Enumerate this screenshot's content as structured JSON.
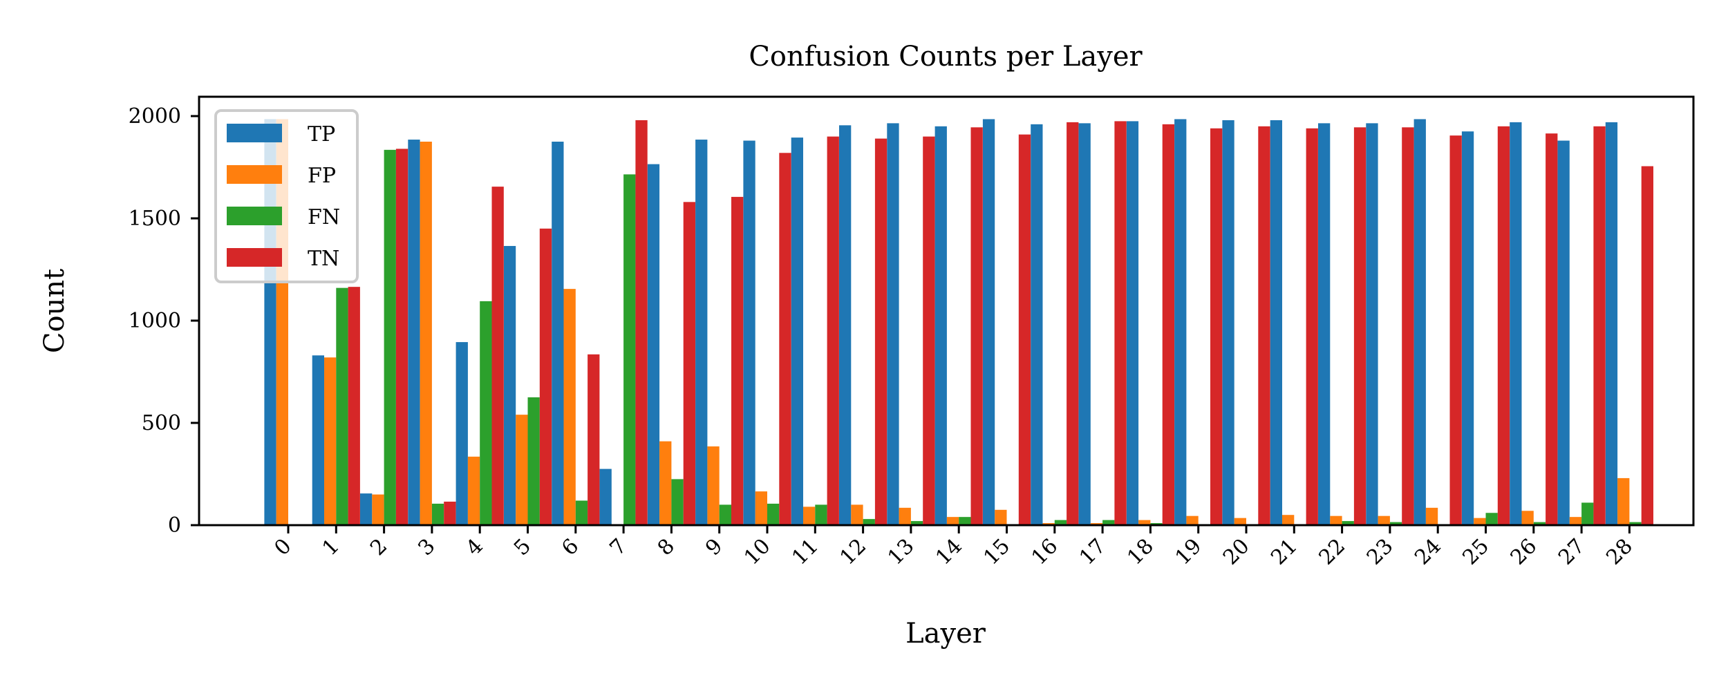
{
  "chart_data": {
    "type": "bar",
    "title": "Confusion Counts per Layer",
    "xlabel": "Layer",
    "ylabel": "Count",
    "ylim": [
      0,
      2100
    ],
    "yticks": [
      0,
      500,
      1000,
      1500,
      2000
    ],
    "legend_position": "top-left",
    "grid": false,
    "categories": [
      "0",
      "1",
      "2",
      "3",
      "4",
      "5",
      "6",
      "7",
      "8",
      "9",
      "10",
      "11",
      "12",
      "13",
      "14",
      "15",
      "16",
      "17",
      "18",
      "19",
      "20",
      "21",
      "22",
      "23",
      "24",
      "25",
      "26",
      "27",
      "28"
    ],
    "series": [
      {
        "name": "TP",
        "color": "#1f77b4",
        "values": [
          1985,
          830,
          155,
          1885,
          895,
          1365,
          1875,
          275,
          1765,
          1885,
          1880,
          1895,
          1955,
          1965,
          1950,
          1985,
          1960,
          1965,
          1975,
          1985,
          1980,
          1980,
          1965,
          1965,
          1985,
          1925,
          1970,
          1880,
          1970
        ]
      },
      {
        "name": "FP",
        "color": "#ff7f0e",
        "values": [
          1985,
          820,
          150,
          1875,
          335,
          540,
          1155,
          5,
          410,
          385,
          165,
          90,
          100,
          85,
          40,
          75,
          10,
          10,
          25,
          45,
          35,
          50,
          45,
          45,
          85,
          35,
          70,
          40,
          230
        ]
      },
      {
        "name": "FN",
        "color": "#2ca02c",
        "values": [
          0,
          1160,
          1835,
          105,
          1095,
          625,
          120,
          1715,
          225,
          100,
          105,
          100,
          30,
          20,
          40,
          0,
          25,
          25,
          10,
          0,
          0,
          0,
          20,
          15,
          0,
          60,
          15,
          110,
          15
        ]
      },
      {
        "name": "TN",
        "color": "#d62728",
        "values": [
          0,
          1165,
          1840,
          115,
          1655,
          1450,
          835,
          1980,
          1580,
          1605,
          1820,
          1900,
          1890,
          1900,
          1945,
          1910,
          1970,
          1975,
          1960,
          1940,
          1950,
          1940,
          1945,
          1945,
          1905,
          1950,
          1915,
          1950,
          1755
        ]
      }
    ]
  }
}
